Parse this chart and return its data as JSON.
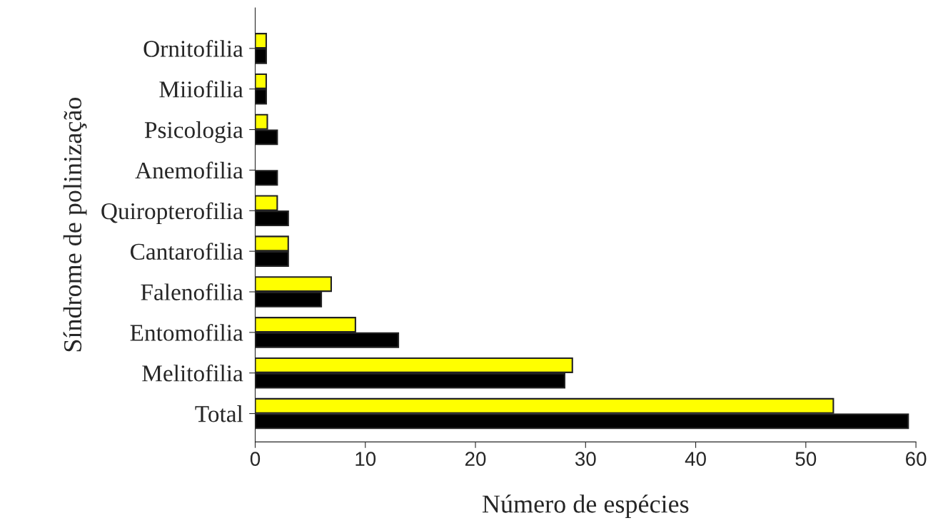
{
  "chart_data": {
    "type": "bar",
    "orientation": "horizontal",
    "xlabel": "Número de espécies",
    "ylabel": "Síndrome de polinização",
    "categories": [
      "Ornitofilia",
      "Miiofilia",
      "Psicologia",
      "Anemofilia",
      "Quiropterofilia",
      "Cantarofilia",
      "Falenofilia",
      "Entomofilia",
      "Melitofilia",
      "Total"
    ],
    "series": [
      {
        "color": "#ffff00",
        "values": [
          1,
          1,
          1.1,
          null,
          2,
          3,
          6.9,
          9.1,
          28.8,
          52.5
        ]
      },
      {
        "color": "#000000",
        "values": [
          1,
          1,
          2,
          2,
          3,
          3,
          6,
          13,
          28.1,
          59.3
        ]
      }
    ],
    "xlim": [
      0,
      60
    ],
    "xticks": [
      0,
      10,
      20,
      30,
      40,
      50,
      60
    ],
    "grid": false,
    "legend": false
  }
}
